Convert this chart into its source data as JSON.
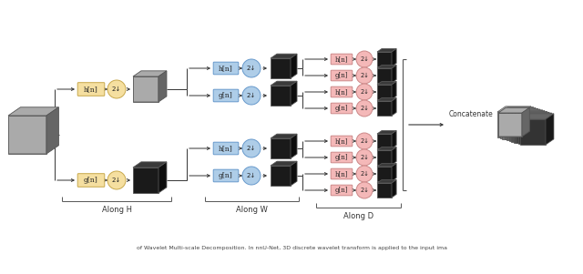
{
  "bg_color": "#ffffff",
  "along_h_label": "Along H",
  "along_w_label": "Along W",
  "along_d_label": "Along D",
  "concatenate_label": "Concatenate",
  "box_color_yellow": "#f5dfa0",
  "box_color_blue": "#aecde8",
  "box_color_pink": "#f4b8b8",
  "circle_color_yellow": "#f5dfa0",
  "circle_color_blue": "#aecde8",
  "circle_color_pink": "#f4b8b8",
  "circle_edge_yellow": "#c8a84b",
  "circle_edge_blue": "#6699cc",
  "circle_edge_pink": "#cc8888",
  "line_color": "#333333",
  "bracket_color": "#555555",
  "cube_dark": "#1a1a1a",
  "cube_mid": "#444444",
  "cube_light_face": "#666666",
  "cube_top": "#555555",
  "cube_right": "#2a2a2a"
}
